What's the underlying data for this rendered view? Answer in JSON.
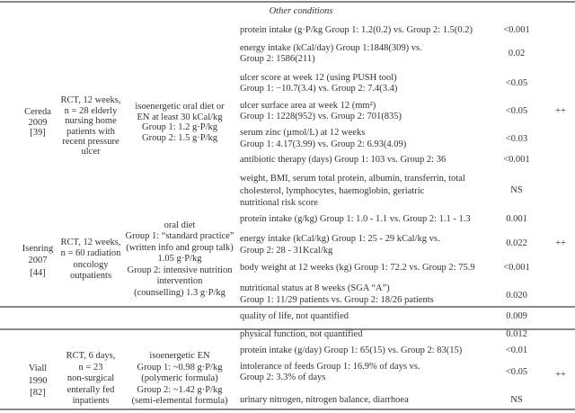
{
  "section_title": "Other conditions",
  "studies": [
    {
      "study": [
        "Cereda",
        "2009",
        "[39]"
      ],
      "design": [
        "RCT, 12 weeks,",
        "n = 28 elderly",
        "nursing home",
        "patients with",
        "recent pressure",
        "ulcer"
      ],
      "intervention": [
        "isoenergetic oral diet or",
        "EN at least 30 kCal/kg",
        "Group 1: 1.2 g·P/kg",
        "Group 2: 1.5 g·P/kg"
      ],
      "quality": "++",
      "outcomes": [
        {
          "text": [
            "protein intake (g·P/kg Group 1: 1.2(0.2) vs. Group 2: 1.5(0.2)"
          ],
          "p": "<0.001"
        },
        {
          "text": [
            "energy intake (kCal/day) Group 1:1848(309) vs.",
            "Group 2: 1586(211)"
          ],
          "p": "0.02"
        },
        {
          "text": [
            "ulcer score at week 12 (using PUSH tool)",
            "Group 1: −10.7(3.4) vs. Group 2: 7.4(3.4)"
          ],
          "p": "<0.05"
        },
        {
          "text": [
            "ulcer surface area at week 12 (mm²)",
            "Group 1: 1228(952) vs. Group 2: 701(835)"
          ],
          "p": "<0.05"
        },
        {
          "text": [
            "serum zinc (µmol/L) at 12 weeks",
            "Group 1: 4.17(3.99) vs. Group 2: 6.93(4.09)"
          ],
          "p": "<0.03"
        },
        {
          "text": [
            "antibiotic therapy (days) Group 1: 103 vs. Group 2: 36"
          ],
          "p": "<0.001"
        },
        {
          "text": [
            "weight, BMI, serum total protein, albumin, transferrin, total",
            "cholesterol, lymphocytes, haemoglobin, geriatric",
            "nutritional risk score"
          ],
          "p": "NS"
        }
      ]
    },
    {
      "study": [
        "Isenring",
        "2007",
        "[44]"
      ],
      "design": [
        "RCT, 12 weeks,",
        "n = 60 radiation",
        "oncology",
        "outpatients"
      ],
      "intervention": [
        "oral diet",
        "Group 1: “standard practice”",
        "(written info and group talk)",
        "1.05 g·P/kg",
        "Group 2: intensive nutrition",
        "intervention",
        "(counselling) 1.3 g·P/kg"
      ],
      "quality": "++",
      "outcomes": [
        {
          "text": [
            "protein intake (g/kg) Group 1: 1.0 - 1.1 vs. Group 2: 1.1 - 1.3"
          ],
          "p": "0.001"
        },
        {
          "text": [
            "energy intake (kCal/kg) Group 1: 25 - 29 kCal/kg vs.",
            "Group 2: 28 - 31Kcal/kg"
          ],
          "p": "0.022"
        },
        {
          "text": [
            "body weight at 12 weeks (kg) Group 1: 72.2 vs. Group 2: 75.9"
          ],
          "p": "<0.001"
        },
        {
          "text": [
            "nutritional status at 8 weeks (SGA “A”)",
            "Group 1: 11/29 patients vs. Group 2: 18/26 patients"
          ],
          "p": "0.020"
        },
        {
          "text": [
            "quality of life, not quantified"
          ],
          "p": "0.009"
        },
        {
          "text": [
            "physical function, not quantified"
          ],
          "p": "0.012"
        }
      ]
    },
    {
      "study": [
        "Viall",
        "1990",
        "[82]"
      ],
      "design": [
        "RCT, 6 days,",
        "n = 23",
        "non-surgical",
        "enterally fed",
        "inpatients"
      ],
      "intervention": [
        "isoenergetic EN",
        "Group 1: ~0.98 g·P/kg",
        "(polymeric formula)",
        "Group 2: ~1.42 g·P/kg",
        "(semi-elemental formula)"
      ],
      "quality": "++",
      "outcomes": [
        {
          "text": [
            "protein intake (g/day) Group 1: 65(15) vs. Group 2: 83(15)"
          ],
          "p": "<0.01"
        },
        {
          "text": [
            "intolerance of feeds Group 1: 16.9% of days vs.",
            "Group 2: 3.3% of days"
          ],
          "p": "<0.05"
        },
        {
          "text": [
            "urinary nitrogen, nitrogen balance, diarrhoea"
          ],
          "p": "NS"
        }
      ]
    }
  ]
}
